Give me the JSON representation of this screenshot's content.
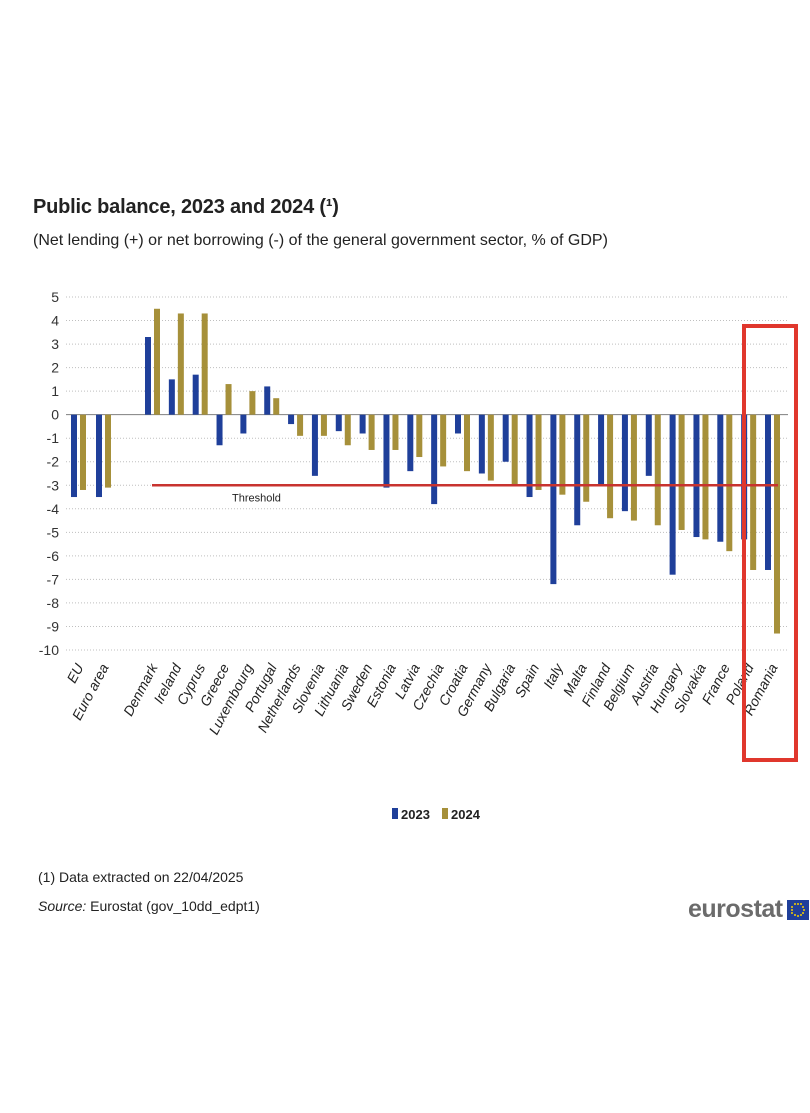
{
  "chart_data": {
    "type": "bar",
    "title": "Public balance, 2023 and 2024 (¹)",
    "subtitle": "(Net lending  (+)  or net borrowing  (-)  of the general government  sector, % of GDP)",
    "categories": [
      "EU",
      "Euro area",
      "Denmark",
      "Ireland",
      "Cyprus",
      "Greece",
      "Luxembourg",
      "Portugal",
      "Netherlands",
      "Slovenia",
      "Lithuania",
      "Sweden",
      "Estonia",
      "Latvia",
      "Czechia",
      "Croatia",
      "Germany",
      "Bulgaria",
      "Spain",
      "Italy",
      "Malta",
      "Finland",
      "Belgium",
      "Austria",
      "Hungary",
      "Slovakia",
      "France",
      "Poland",
      "Romania"
    ],
    "series": [
      {
        "name": "2023",
        "color": "#1f3f9a",
        "values": [
          -3.5,
          -3.5,
          3.3,
          1.5,
          1.7,
          -1.3,
          -0.8,
          1.2,
          -0.4,
          -2.6,
          -0.7,
          -0.8,
          -3.1,
          -2.4,
          -3.8,
          -0.8,
          -2.5,
          -2.0,
          -3.5,
          -7.2,
          -4.7,
          -3.0,
          -4.1,
          -2.6,
          -6.8,
          -5.2,
          -5.4,
          -5.3,
          -6.6
        ]
      },
      {
        "name": "2024",
        "color": "#a6903a",
        "values": [
          -3.2,
          -3.1,
          4.5,
          4.3,
          4.3,
          1.3,
          1.0,
          0.7,
          -0.9,
          -0.9,
          -1.3,
          -1.5,
          -1.5,
          -1.8,
          -2.2,
          -2.4,
          -2.8,
          -3.0,
          -3.2,
          -3.4,
          -3.7,
          -4.4,
          -4.5,
          -4.7,
          -4.9,
          -5.3,
          -5.8,
          -6.6,
          -9.3
        ]
      }
    ],
    "yticks": [
      5,
      4,
      3,
      2,
      1,
      0,
      -1,
      -2,
      -3,
      -4,
      -5,
      -6,
      -7,
      -8,
      -9,
      -10
    ],
    "ylim": [
      -10,
      5
    ],
    "threshold": {
      "label": "Threshold",
      "value": -3,
      "color": "#c8332f"
    },
    "highlight": {
      "category": "Romania",
      "color": "#e0372d"
    },
    "grid": true,
    "legend_position": "bottom-center"
  },
  "footnote": "(1) Data extracted  on 22/04/2025",
  "source_label": "Source:",
  "source_text": " Eurostat (gov_10dd_edpt1)",
  "logo_text": "eurostat"
}
